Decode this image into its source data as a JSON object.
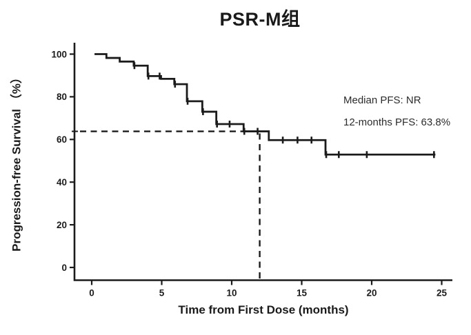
{
  "page": {
    "background": "#ffffff",
    "text_color": "#1a1a1a"
  },
  "chart_data": {
    "type": "line",
    "chart_style": "kaplan-meier-step",
    "title": "PSR-M组",
    "xlabel": "Time from First Dose (months)",
    "ylabel": "Progression-free Survival （%）",
    "x_ticks": [
      0,
      5,
      10,
      15,
      20,
      25
    ],
    "y_ticks": [
      0,
      20,
      40,
      60,
      80,
      100
    ],
    "xlim": [
      0,
      25.8
    ],
    "ylim": [
      0,
      105
    ],
    "grid": false,
    "legend": "none",
    "line_color": "#1b1b1b",
    "annotations": {
      "line1": "Median PFS: NR",
      "line2": "12-months PFS: 63.8%"
    },
    "reference_lines": {
      "style": "dashed",
      "x_month": 12,
      "y_percent": 63.8,
      "note": "dashed horizontal from y-axis at 63.8% to dashed vertical at month 12 down to x-axis"
    },
    "series": [
      {
        "name": "PSR-M组",
        "start_x": 0.2,
        "start_y": 100,
        "end_x": 24.55,
        "drops": [
          [
            1.05,
            98.2
          ],
          [
            2.0,
            96.5
          ],
          [
            3.0,
            94.6
          ],
          [
            4.0,
            89.7
          ],
          [
            4.95,
            88.4
          ],
          [
            5.9,
            85.9
          ],
          [
            6.8,
            77.9
          ],
          [
            7.9,
            73.0
          ],
          [
            8.9,
            67.2
          ],
          [
            10.85,
            63.8
          ],
          [
            12.65,
            59.7
          ],
          [
            16.7,
            52.9
          ]
        ],
        "censors": [
          [
            3.05,
            94.6
          ],
          [
            4.05,
            89.7
          ],
          [
            4.85,
            89.7
          ],
          [
            5.95,
            85.9
          ],
          [
            6.85,
            77.9
          ],
          [
            7.95,
            73.0
          ],
          [
            8.95,
            67.2
          ],
          [
            9.85,
            67.2
          ],
          [
            10.9,
            63.8
          ],
          [
            11.85,
            63.8
          ],
          [
            13.65,
            59.7
          ],
          [
            14.7,
            59.7
          ],
          [
            15.7,
            59.7
          ],
          [
            16.75,
            52.9
          ],
          [
            17.65,
            52.9
          ],
          [
            19.65,
            52.9
          ],
          [
            24.45,
            52.9
          ]
        ]
      }
    ]
  }
}
